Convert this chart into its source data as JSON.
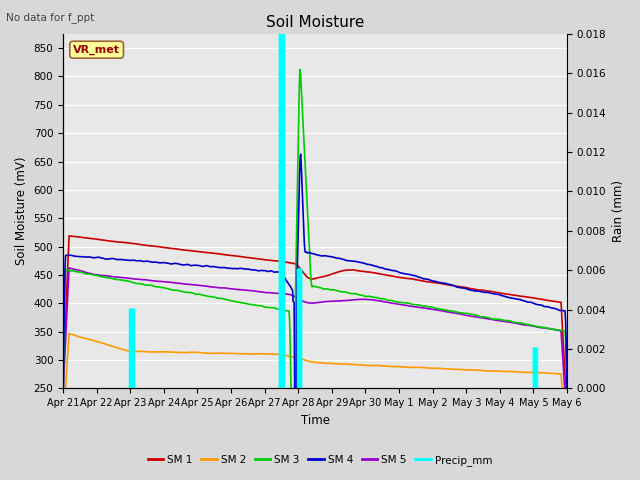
{
  "title": "Soil Moisture",
  "subtitle": "No data for f_ppt",
  "ylabel_left": "Soil Moisture (mV)",
  "ylabel_right": "Rain (mm)",
  "xlabel": "Time",
  "ylim_left": [
    250,
    875
  ],
  "ylim_right": [
    0,
    0.018
  ],
  "yticks_left": [
    250,
    300,
    350,
    400,
    450,
    500,
    550,
    600,
    650,
    700,
    750,
    800,
    850
  ],
  "yticks_right": [
    0.0,
    0.002,
    0.004,
    0.006,
    0.008,
    0.01,
    0.012,
    0.014,
    0.016,
    0.018
  ],
  "background_color": "#e8e8e8",
  "grid_color": "#ffffff",
  "colors": {
    "SM1": "#cc0000",
    "SM2": "#ff9900",
    "SM3": "#00cc00",
    "SM4": "#0000cc",
    "SM5": "#9900cc",
    "Precip": "#00ffff"
  },
  "legend_labels": [
    "SM 1",
    "SM 2",
    "SM 3",
    "SM 4",
    "SM 5",
    "Precip_mm"
  ],
  "station_label": "VR_met",
  "xtick_labels": [
    "Apr 21",
    "Apr 22",
    "Apr 23",
    "Apr 24",
    "Apr 25",
    "Apr 26",
    "Apr 27",
    "Apr 28",
    "Apr 29",
    "Apr 30",
    "May 1",
    "May 2",
    "May 3",
    "May 4",
    "May 5",
    "May 6"
  ],
  "n_points": 1000
}
